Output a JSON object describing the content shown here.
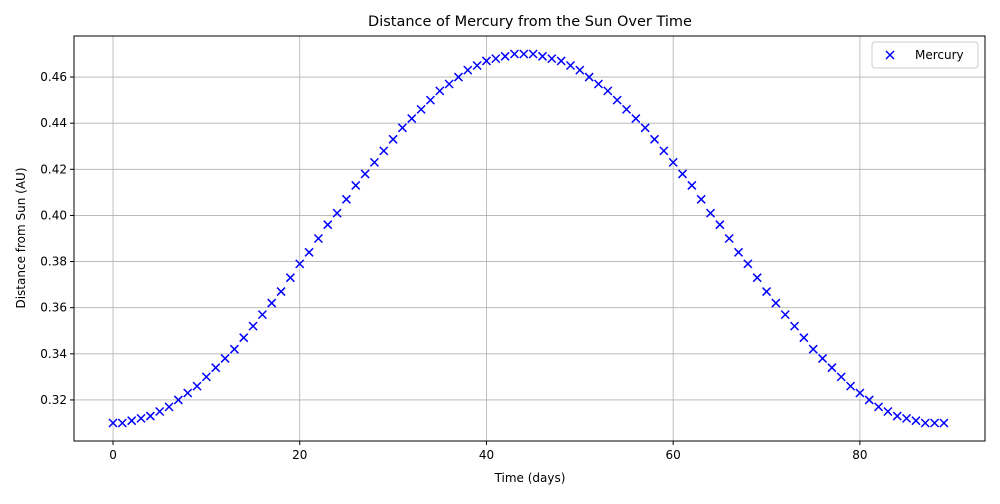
{
  "chart_data": {
    "type": "scatter",
    "title": "Distance of Mercury from the Sun Over Time",
    "x_label": "Time (days)",
    "y_label": "Distance from Sun (AU)",
    "x": [
      0,
      1,
      2,
      3,
      4,
      5,
      6,
      7,
      8,
      9,
      10,
      11,
      12,
      13,
      14,
      15,
      16,
      17,
      18,
      19,
      20,
      21,
      22,
      23,
      24,
      25,
      26,
      27,
      28,
      29,
      30,
      31,
      32,
      33,
      34,
      35,
      36,
      37,
      38,
      39,
      40,
      41,
      42,
      43,
      44,
      45,
      46,
      47,
      48,
      49,
      50,
      51,
      52,
      53,
      54,
      55,
      56,
      57,
      58,
      59,
      60,
      61,
      62,
      63,
      64,
      65,
      66,
      67,
      68,
      69,
      70,
      71,
      72,
      73,
      74,
      75,
      76,
      77,
      78,
      79,
      80,
      81,
      82,
      83,
      84,
      85,
      86,
      87,
      88,
      89
    ],
    "series": [
      {
        "name": "Mercury",
        "color": "#0000ff",
        "marker": "x",
        "values": [
          0.31,
          0.31,
          0.311,
          0.312,
          0.313,
          0.315,
          0.317,
          0.32,
          0.323,
          0.326,
          0.33,
          0.334,
          0.338,
          0.342,
          0.347,
          0.352,
          0.357,
          0.362,
          0.367,
          0.373,
          0.379,
          0.384,
          0.39,
          0.396,
          0.401,
          0.407,
          0.413,
          0.418,
          0.423,
          0.428,
          0.433,
          0.438,
          0.442,
          0.446,
          0.45,
          0.454,
          0.457,
          0.46,
          0.463,
          0.465,
          0.467,
          0.468,
          0.469,
          0.47,
          0.47,
          0.47,
          0.469,
          0.468,
          0.467,
          0.465,
          0.463,
          0.46,
          0.457,
          0.454,
          0.45,
          0.446,
          0.442,
          0.438,
          0.433,
          0.428,
          0.423,
          0.418,
          0.413,
          0.407,
          0.401,
          0.396,
          0.39,
          0.384,
          0.379,
          0.373,
          0.367,
          0.362,
          0.357,
          0.352,
          0.347,
          0.342,
          0.338,
          0.334,
          0.33,
          0.326,
          0.323,
          0.32,
          0.317,
          0.315,
          0.313,
          0.312,
          0.311,
          0.31,
          0.31,
          0.31
        ]
      }
    ],
    "xlim": [
      -4.18,
      93.4
    ],
    "xticks": [
      0,
      20,
      40,
      60,
      80
    ],
    "ylim": [
      0.3022,
      0.4778
    ],
    "yticks": [
      0.32,
      0.34,
      0.36,
      0.38,
      {
        "value": 0.4,
        "label": "0.40"
      },
      0.42,
      0.44,
      0.46
    ],
    "grid": true,
    "legend": "upper right"
  }
}
